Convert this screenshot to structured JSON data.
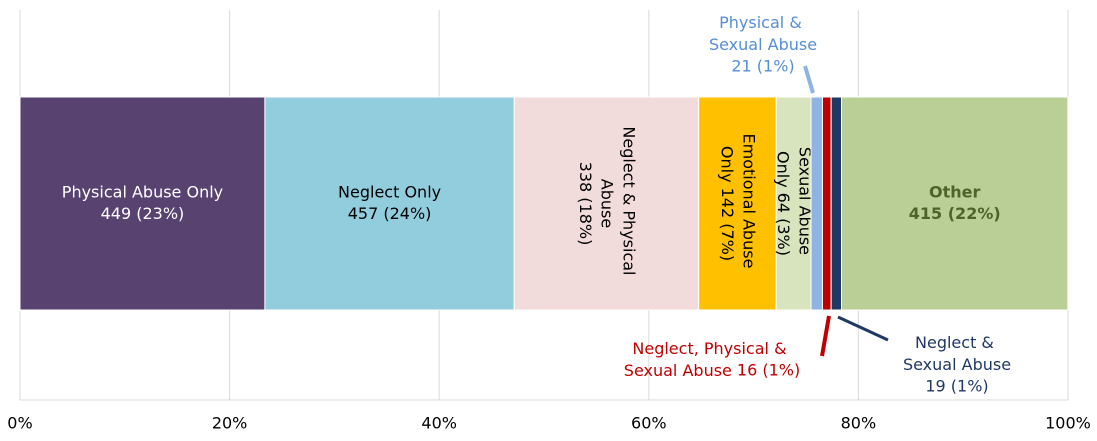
{
  "chart_data": {
    "type": "stacked-bar-100",
    "series": [
      {
        "name": "Physical Abuse Only",
        "color": "#574270",
        "values": [
          23.37
        ],
        "value_labels": [
          "449  (23%)"
        ]
      },
      {
        "name": "Neglect Only",
        "color": "#92cddd",
        "values": [
          23.79
        ],
        "value_labels": [
          "457  (24%)"
        ]
      },
      {
        "name": "Neglect & Physical Abuse",
        "color": "#f2dcdb",
        "values": [
          17.6
        ],
        "value_labels": [
          "338 (18%)"
        ]
      },
      {
        "name": "Emotional Abuse Only",
        "color": "#ffc000",
        "values": [
          7.39
        ],
        "value_labels": [
          "142  (7%)"
        ]
      },
      {
        "name": "Sexual Abuse Only",
        "color": "#d7e4bd",
        "values": [
          3.33
        ],
        "value_labels": [
          "64  (3%)"
        ]
      },
      {
        "name": "Physical & Sexual Abuse",
        "color": "#8eb4e3",
        "values": [
          1.09
        ],
        "value_labels": [
          "21 (1%)"
        ]
      },
      {
        "name": "Neglect, Physical & Sexual Abuse",
        "color": "#c00000",
        "values": [
          0.83
        ],
        "value_labels": [
          "16 (1%)"
        ]
      },
      {
        "name": "Neglect & Sexual Abuse",
        "color": "#1f3864",
        "values": [
          0.99
        ],
        "value_labels": [
          "19 (1%)"
        ]
      },
      {
        "name": "Other",
        "color": "#b9cf96",
        "values": [
          21.6
        ],
        "value_labels": [
          "415 (22%)"
        ]
      }
    ],
    "xlim": [
      0,
      100
    ],
    "xticks": [
      {
        "value": 0,
        "label": "0%"
      },
      {
        "value": 20,
        "label": "20%"
      },
      {
        "value": 40,
        "label": "40%"
      },
      {
        "value": 60,
        "label": "60%"
      },
      {
        "value": 80,
        "label": "80%"
      },
      {
        "value": 100,
        "label": "100%"
      }
    ],
    "grid": true
  }
}
